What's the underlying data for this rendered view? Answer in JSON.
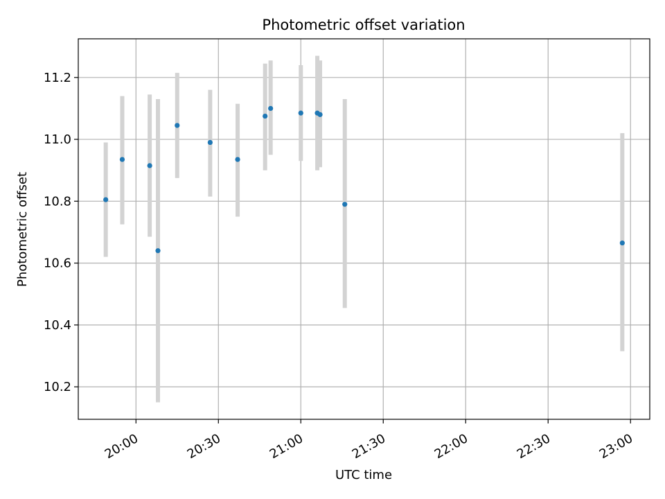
{
  "chart_data": {
    "type": "scatter",
    "title": "Photometric offset variation",
    "xlabel": "UTC time",
    "ylabel": "Photometric offset",
    "grid": true,
    "x_tick_labels": [
      "20:00",
      "20:30",
      "21:00",
      "21:30",
      "22:00",
      "22:30",
      "23:00"
    ],
    "x_tick_values": [
      "20:00",
      "20:30",
      "21:00",
      "21:30",
      "22:00",
      "22:30",
      "23:00"
    ],
    "y_ticks": [
      10.2,
      10.4,
      10.6,
      10.8,
      11.0,
      11.2
    ],
    "y_tick_labels": [
      "10.2",
      "10.4",
      "10.6",
      "10.8",
      "11.0",
      "11.2"
    ],
    "xlim": [
      "19:39",
      "23:07"
    ],
    "ylim": [
      10.095,
      11.325
    ],
    "colors": {
      "point": "#1f77b4",
      "errorbar": "#d3d3d3",
      "grid": "#b0b0b0"
    },
    "points": [
      {
        "x": "19:49",
        "y": 10.805,
        "ylow": 10.62,
        "yhigh": 10.99
      },
      {
        "x": "19:55",
        "y": 10.935,
        "ylow": 10.725,
        "yhigh": 11.14
      },
      {
        "x": "20:05",
        "y": 10.915,
        "ylow": 10.685,
        "yhigh": 11.145
      },
      {
        "x": "20:08",
        "y": 10.64,
        "ylow": 10.15,
        "yhigh": 11.13
      },
      {
        "x": "20:15",
        "y": 11.045,
        "ylow": 10.875,
        "yhigh": 11.215
      },
      {
        "x": "20:27",
        "y": 10.99,
        "ylow": 10.815,
        "yhigh": 11.16
      },
      {
        "x": "20:37",
        "y": 10.935,
        "ylow": 10.75,
        "yhigh": 11.115
      },
      {
        "x": "20:47",
        "y": 11.075,
        "ylow": 10.9,
        "yhigh": 11.245
      },
      {
        "x": "20:49",
        "y": 11.1,
        "ylow": 10.95,
        "yhigh": 11.255
      },
      {
        "x": "21:00",
        "y": 11.085,
        "ylow": 10.93,
        "yhigh": 11.24
      },
      {
        "x": "21:06",
        "y": 11.085,
        "ylow": 10.9,
        "yhigh": 11.27
      },
      {
        "x": "21:07",
        "y": 11.08,
        "ylow": 10.91,
        "yhigh": 11.255
      },
      {
        "x": "21:16",
        "y": 10.79,
        "ylow": 10.455,
        "yhigh": 11.13
      },
      {
        "x": "22:57",
        "y": 10.665,
        "ylow": 10.315,
        "yhigh": 11.02
      }
    ]
  }
}
